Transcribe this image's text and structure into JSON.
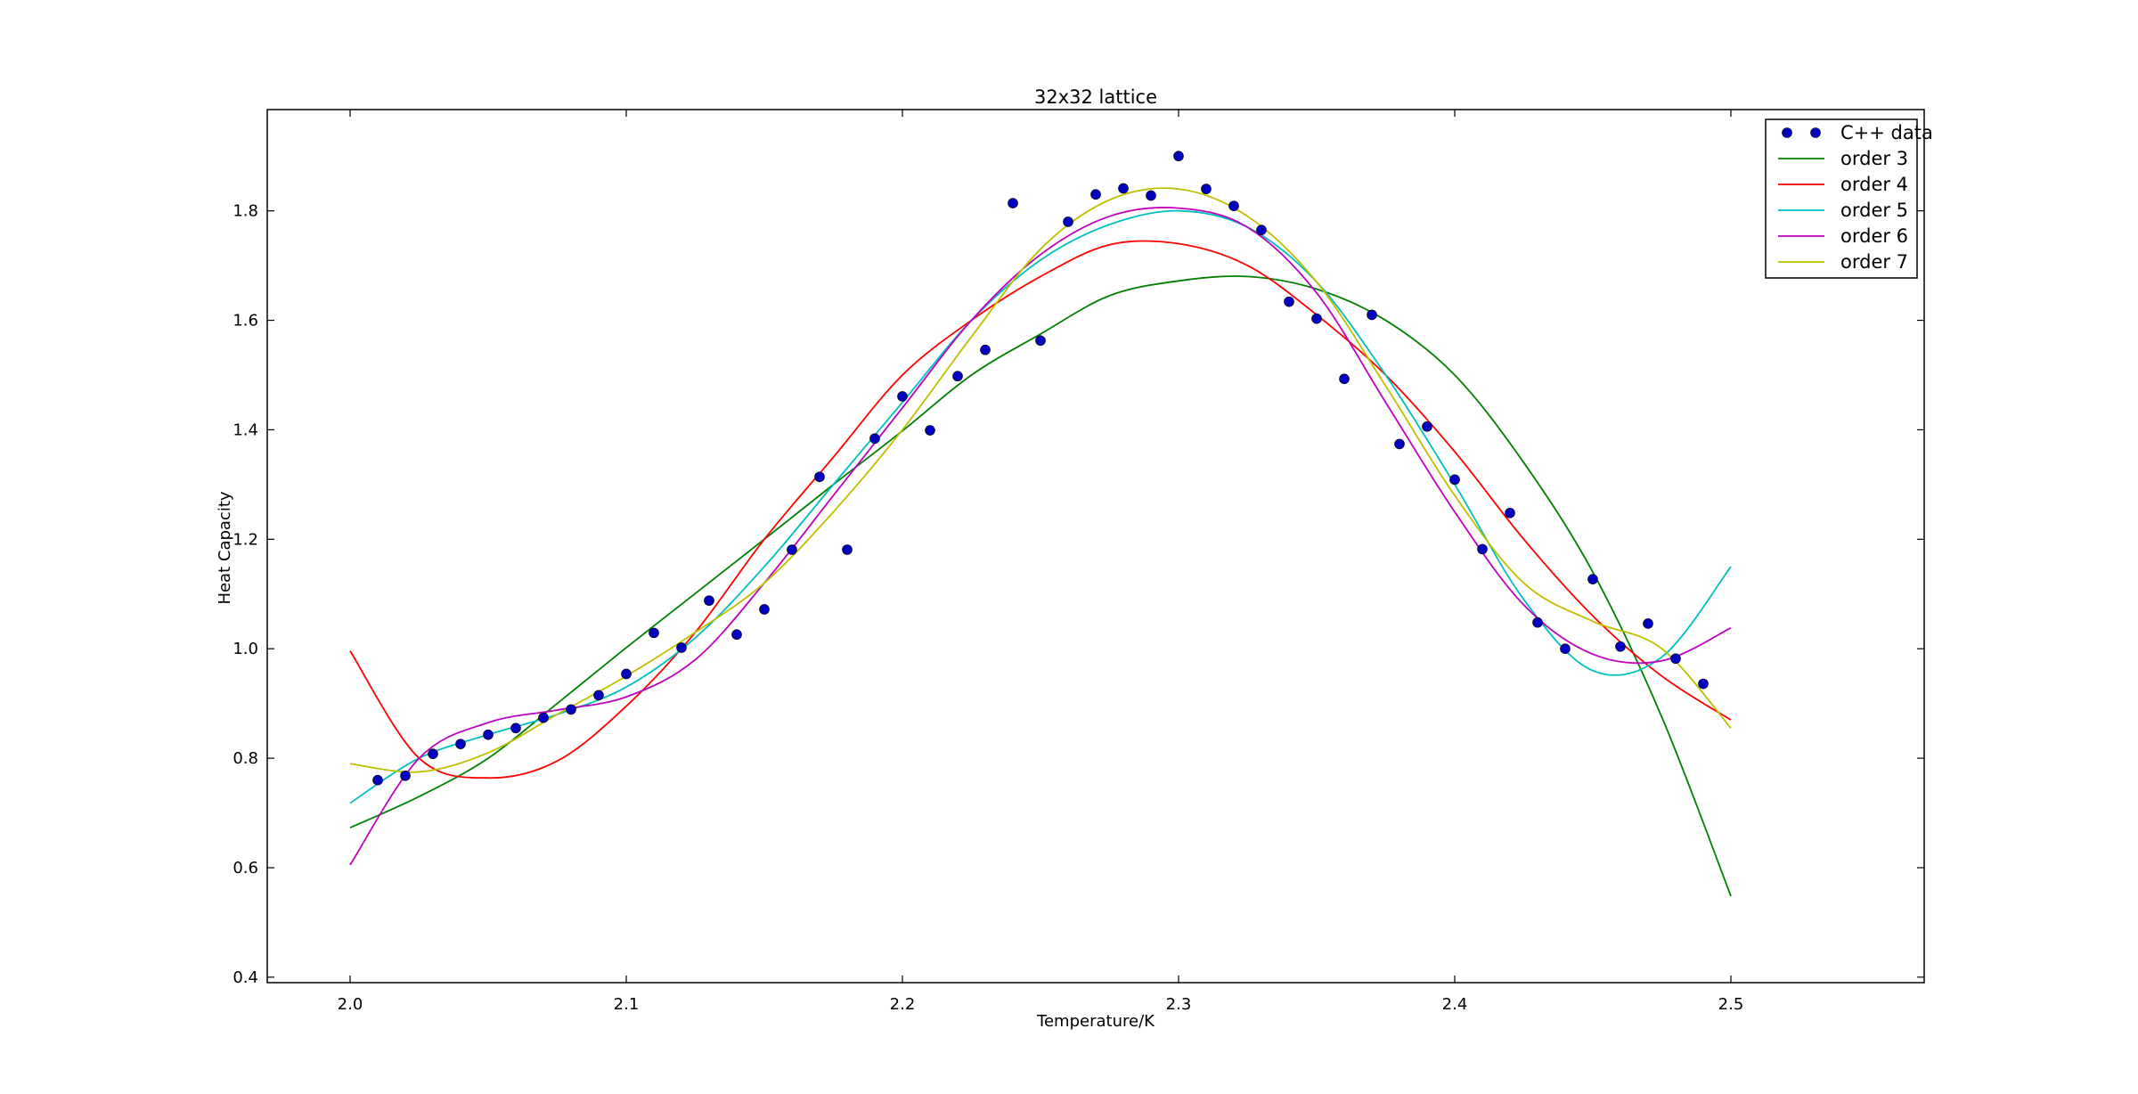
{
  "chart_data": {
    "type": "line",
    "title": "32x32 lattice",
    "xlabel": "Temperature/K",
    "ylabel": "Heat Capacity",
    "xlim": [
      1.97,
      2.57
    ],
    "ylim": [
      0.39,
      1.985
    ],
    "xticks": [
      2.0,
      2.1,
      2.2,
      2.3,
      2.4,
      2.5
    ],
    "xtick_labels": [
      "2.0",
      "2.1",
      "2.2",
      "2.3",
      "2.4",
      "2.5"
    ],
    "yticks": [
      0.4,
      0.6,
      0.8,
      1.0,
      1.2,
      1.4,
      1.6,
      1.8
    ],
    "ytick_labels": [
      "0.4",
      "0.6",
      "0.8",
      "1.0",
      "1.2",
      "1.4",
      "1.6",
      "1.8"
    ],
    "grid": false,
    "legend_position": "top-right",
    "scatter": {
      "name": "C++ data",
      "color": "#0000bf",
      "x": [
        2.01,
        2.02,
        2.03,
        2.04,
        2.05,
        2.06,
        2.07,
        2.08,
        2.09,
        2.1,
        2.11,
        2.12,
        2.13,
        2.14,
        2.15,
        2.16,
        2.17,
        2.18,
        2.19,
        2.2,
        2.21,
        2.22,
        2.23,
        2.24,
        2.25,
        2.26,
        2.27,
        2.28,
        2.29,
        2.3,
        2.31,
        2.32,
        2.33,
        2.34,
        2.35,
        2.36,
        2.37,
        2.38,
        2.39,
        2.4,
        2.41,
        2.42,
        2.43,
        2.44,
        2.45,
        2.46,
        2.47,
        2.48,
        2.49
      ],
      "y": [
        0.76,
        0.768,
        0.808,
        0.826,
        0.843,
        0.855,
        0.874,
        0.889,
        0.915,
        0.954,
        1.029,
        1.002,
        1.088,
        1.026,
        1.072,
        1.181,
        1.314,
        1.181,
        1.384,
        1.461,
        1.399,
        1.498,
        1.546,
        1.814,
        1.563,
        1.78,
        1.83,
        1.841,
        1.828,
        1.9,
        1.84,
        1.809,
        1.765,
        1.634,
        1.603,
        1.493,
        1.61,
        1.374,
        1.406,
        1.309,
        1.182,
        1.248,
        1.048,
        1.0,
        1.127,
        1.004,
        1.046,
        0.982,
        0.936
      ]
    },
    "series": [
      {
        "name": "order 3",
        "color": "#008000",
        "x": [
          2.0,
          2.025,
          2.05,
          2.075,
          2.1,
          2.125,
          2.15,
          2.175,
          2.2,
          2.225,
          2.25,
          2.275,
          2.3,
          2.325,
          2.35,
          2.375,
          2.4,
          2.425,
          2.45,
          2.475,
          2.5
        ],
        "y": [
          0.673,
          0.73,
          0.8,
          0.9,
          1.002,
          1.101,
          1.2,
          1.3,
          1.398,
          1.5,
          1.575,
          1.645,
          1.672,
          1.68,
          1.657,
          1.6,
          1.5,
          1.34,
          1.14,
          0.875,
          0.548
        ]
      },
      {
        "name": "order 4",
        "color": "#ff0000",
        "x": [
          2.0,
          2.025,
          2.05,
          2.075,
          2.1,
          2.125,
          2.15,
          2.175,
          2.2,
          2.225,
          2.25,
          2.275,
          2.3,
          2.325,
          2.35,
          2.375,
          2.4,
          2.425,
          2.45,
          2.475,
          2.5
        ],
        "y": [
          0.996,
          0.8,
          0.764,
          0.795,
          0.895,
          1.03,
          1.2,
          1.35,
          1.5,
          1.6,
          1.68,
          1.738,
          1.74,
          1.7,
          1.61,
          1.5,
          1.36,
          1.2,
          1.06,
          0.95,
          0.87
        ]
      },
      {
        "name": "order 5",
        "color": "#00bfbf",
        "x": [
          2.0,
          2.025,
          2.05,
          2.075,
          2.1,
          2.125,
          2.15,
          2.175,
          2.2,
          2.225,
          2.25,
          2.275,
          2.3,
          2.325,
          2.35,
          2.375,
          2.4,
          2.425,
          2.45,
          2.475,
          2.5
        ],
        "y": [
          0.718,
          0.8,
          0.843,
          0.88,
          0.93,
          1.02,
          1.15,
          1.3,
          1.45,
          1.6,
          1.71,
          1.775,
          1.8,
          1.77,
          1.67,
          1.5,
          1.3,
          1.09,
          0.96,
          0.985,
          1.15
        ]
      },
      {
        "name": "order 6",
        "color": "#bf00bf",
        "x": [
          2.0,
          2.025,
          2.05,
          2.075,
          2.1,
          2.125,
          2.15,
          2.175,
          2.2,
          2.225,
          2.25,
          2.275,
          2.3,
          2.325,
          2.35,
          2.375,
          2.4,
          2.425,
          2.45,
          2.475,
          2.5
        ],
        "y": [
          0.605,
          0.8,
          0.865,
          0.888,
          0.912,
          0.98,
          1.12,
          1.28,
          1.44,
          1.6,
          1.72,
          1.79,
          1.805,
          1.77,
          1.65,
          1.45,
          1.25,
          1.08,
          0.99,
          0.978,
          1.038
        ]
      },
      {
        "name": "order 7",
        "color": "#bfbf00",
        "x": [
          2.0,
          2.025,
          2.05,
          2.075,
          2.1,
          2.125,
          2.15,
          2.175,
          2.2,
          2.225,
          2.25,
          2.275,
          2.3,
          2.325,
          2.35,
          2.375,
          2.4,
          2.425,
          2.45,
          2.475,
          2.5
        ],
        "y": [
          0.79,
          0.775,
          0.81,
          0.88,
          0.95,
          1.03,
          1.12,
          1.25,
          1.4,
          1.57,
          1.73,
          1.82,
          1.84,
          1.79,
          1.67,
          1.48,
          1.28,
          1.12,
          1.05,
          1.0,
          0.855
        ]
      }
    ]
  }
}
